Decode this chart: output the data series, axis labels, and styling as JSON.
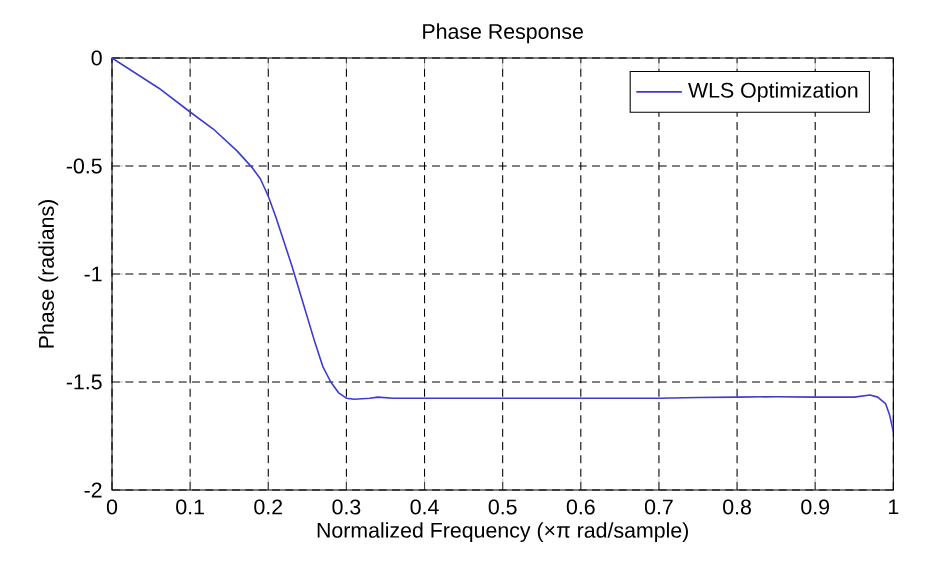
{
  "chart_data": {
    "type": "line",
    "title": "Phase Response",
    "xlabel": "Normalized Frequency  (×π rad/sample)",
    "ylabel": "Phase (radians)",
    "x": [
      0,
      0.03,
      0.06,
      0.1,
      0.13,
      0.16,
      0.18,
      0.19,
      0.2,
      0.21,
      0.22,
      0.23,
      0.24,
      0.25,
      0.26,
      0.27,
      0.28,
      0.29,
      0.3,
      0.31,
      0.33,
      0.34,
      0.36,
      0.4,
      0.5,
      0.6,
      0.7,
      0.75,
      0.8,
      0.85,
      0.9,
      0.95,
      0.97,
      0.98,
      0.99,
      0.995,
      1.0
    ],
    "series": [
      {
        "name": "WLS Optimization",
        "color": "#3c3cd0",
        "values": [
          0,
          -0.07,
          -0.14,
          -0.25,
          -0.33,
          -0.43,
          -0.51,
          -0.56,
          -0.64,
          -0.74,
          -0.85,
          -0.96,
          -1.08,
          -1.2,
          -1.32,
          -1.43,
          -1.5,
          -1.55,
          -1.575,
          -1.58,
          -1.575,
          -1.57,
          -1.575,
          -1.575,
          -1.575,
          -1.575,
          -1.575,
          -1.572,
          -1.57,
          -1.568,
          -1.57,
          -1.57,
          -1.56,
          -1.57,
          -1.6,
          -1.65,
          -1.73
        ]
      }
    ],
    "xlim": [
      0,
      1
    ],
    "ylim": [
      -2,
      0
    ],
    "xticks": [
      0,
      0.1,
      0.2,
      0.3,
      0.4,
      0.5,
      0.6,
      0.7,
      0.8,
      0.9,
      1
    ],
    "yticks": [
      -2,
      -1.5,
      -1,
      -0.5,
      0
    ],
    "grid": true,
    "legend": "top right",
    "line_style": "solid",
    "marker": "none"
  }
}
